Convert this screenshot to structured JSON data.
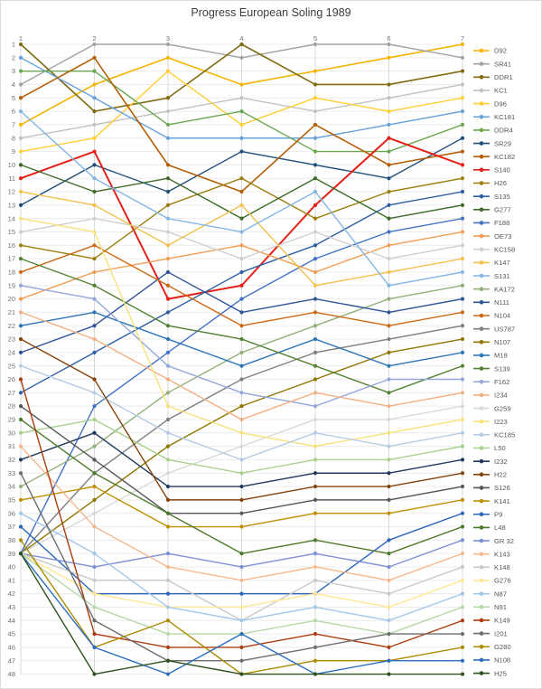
{
  "title": "Progress European Soling 1989",
  "chart_data": {
    "type": "line",
    "subtype": "bump-rank-chart",
    "x": [
      1,
      2,
      3,
      4,
      5,
      6,
      7
    ],
    "x_axis_position": "top",
    "xlabel": "",
    "ylabel": "",
    "y_ticks": [
      1,
      2,
      3,
      4,
      5,
      6,
      7,
      8,
      9,
      10,
      11,
      12,
      13,
      14,
      15,
      16,
      17,
      18,
      19,
      20,
      21,
      22,
      23,
      24,
      25,
      26,
      27,
      28,
      29,
      30,
      31,
      32,
      33,
      34,
      35,
      36,
      37,
      38,
      39,
      40,
      41,
      42,
      43,
      44,
      45,
      46,
      47,
      48
    ],
    "ylim": [
      1,
      48
    ],
    "y_inverted": true,
    "grid": true,
    "legend_position": "right",
    "note": "values are regatta placings per round; round-1 has a tie group at rank 39; legend order equals final round-7 standing",
    "series": [
      {
        "name": "D92",
        "color": "#F4B400",
        "width": 1.6,
        "values": [
          7,
          4,
          2,
          4,
          3,
          2,
          1
        ]
      },
      {
        "name": "SR41",
        "color": "#A3A3A3",
        "width": 1.4,
        "values": [
          4,
          1,
          1,
          2,
          1,
          1,
          2
        ]
      },
      {
        "name": "DDR1",
        "color": "#7F6B11",
        "width": 1.6,
        "values": [
          1,
          6,
          5,
          1,
          4,
          4,
          3
        ]
      },
      {
        "name": "KC1",
        "color": "#C2C2C2",
        "width": 1.4,
        "values": [
          8,
          7,
          6,
          5,
          6,
          5,
          4
        ]
      },
      {
        "name": "D96",
        "color": "#FFCE33",
        "width": 1.4,
        "values": [
          9,
          8,
          3,
          7,
          5,
          6,
          5
        ]
      },
      {
        "name": "KC181",
        "color": "#66A1DC",
        "width": 1.4,
        "values": [
          2,
          5,
          8,
          8,
          8,
          7,
          6
        ]
      },
      {
        "name": "DDR4",
        "color": "#69A84F",
        "width": 1.4,
        "values": [
          3,
          3,
          7,
          6,
          9,
          9,
          7
        ]
      },
      {
        "name": "SR29",
        "color": "#1F4E79",
        "width": 1.4,
        "values": [
          13,
          10,
          12,
          9,
          10,
          11,
          8
        ]
      },
      {
        "name": "KC182",
        "color": "#B45F06",
        "width": 1.6,
        "values": [
          5,
          2,
          10,
          12,
          7,
          10,
          9
        ]
      },
      {
        "name": "S140",
        "color": "#E32119",
        "width": 2.0,
        "values": [
          11,
          9,
          20,
          19,
          13,
          8,
          10
        ]
      },
      {
        "name": "H26",
        "color": "#9C7E0C",
        "width": 1.4,
        "values": [
          16,
          17,
          13,
          11,
          14,
          12,
          11
        ]
      },
      {
        "name": "S135",
        "color": "#2E5FA3",
        "width": 1.4,
        "values": [
          27,
          24,
          21,
          18,
          16,
          13,
          12
        ]
      },
      {
        "name": "G277",
        "color": "#3E6B27",
        "width": 1.4,
        "values": [
          10,
          12,
          11,
          14,
          11,
          14,
          13
        ]
      },
      {
        "name": "F188",
        "color": "#4472C4",
        "width": 1.4,
        "values": [
          39,
          28,
          24,
          20,
          17,
          15,
          14
        ]
      },
      {
        "name": "OE73",
        "color": "#F09E54",
        "width": 1.4,
        "values": [
          20,
          18,
          17,
          16,
          18,
          16,
          15
        ]
      },
      {
        "name": "KC158",
        "color": "#CFCFCF",
        "width": 1.4,
        "values": [
          15,
          14,
          15,
          17,
          15,
          17,
          16
        ]
      },
      {
        "name": "K147",
        "color": "#F2C14E",
        "width": 1.4,
        "values": [
          12,
          13,
          16,
          13,
          19,
          18,
          17
        ]
      },
      {
        "name": "S131",
        "color": "#85B7E6",
        "width": 1.4,
        "values": [
          6,
          11,
          14,
          15,
          12,
          19,
          18
        ]
      },
      {
        "name": "KA172",
        "color": "#93B07A",
        "width": 1.4,
        "values": [
          34,
          31,
          27,
          24,
          22,
          20,
          19
        ]
      },
      {
        "name": "N111",
        "color": "#2F5597",
        "width": 1.4,
        "values": [
          24,
          22,
          18,
          21,
          20,
          21,
          20
        ]
      },
      {
        "name": "N104",
        "color": "#CB6A15",
        "width": 1.4,
        "values": [
          18,
          16,
          19,
          22,
          21,
          22,
          21
        ]
      },
      {
        "name": "US787",
        "color": "#7F7F7F",
        "width": 1.4,
        "values": [
          39,
          33,
          29,
          26,
          24,
          23,
          22
        ]
      },
      {
        "name": "N107",
        "color": "#8E7600",
        "width": 1.4,
        "values": [
          39,
          35,
          31,
          28,
          26,
          24,
          23
        ]
      },
      {
        "name": "M18",
        "color": "#2E75B6",
        "width": 1.4,
        "values": [
          22,
          21,
          23,
          25,
          23,
          25,
          24
        ]
      },
      {
        "name": "S139",
        "color": "#548235",
        "width": 1.4,
        "values": [
          17,
          19,
          22,
          23,
          25,
          27,
          25
        ]
      },
      {
        "name": "F162",
        "color": "#94A7DB",
        "width": 1.4,
        "values": [
          19,
          20,
          25,
          27,
          28,
          26,
          26
        ]
      },
      {
        "name": "I234",
        "color": "#F3B183",
        "width": 1.4,
        "values": [
          21,
          23,
          26,
          29,
          27,
          28,
          27
        ]
      },
      {
        "name": "G259",
        "color": "#D9D9D9",
        "width": 1.4,
        "values": [
          39,
          36,
          33,
          31,
          29,
          29,
          28
        ]
      },
      {
        "name": "I223",
        "color": "#F7E27C",
        "width": 1.4,
        "values": [
          14,
          15,
          28,
          30,
          31,
          30,
          29
        ]
      },
      {
        "name": "KC185",
        "color": "#B6CBE4",
        "width": 1.4,
        "values": [
          25,
          27,
          30,
          32,
          30,
          31,
          30
        ]
      },
      {
        "name": "L50",
        "color": "#A9D18E",
        "width": 1.4,
        "values": [
          30,
          29,
          32,
          33,
          32,
          32,
          31
        ]
      },
      {
        "name": "I232",
        "color": "#20395E",
        "width": 1.4,
        "values": [
          32,
          30,
          34,
          34,
          33,
          33,
          32
        ]
      },
      {
        "name": "H22",
        "color": "#84420C",
        "width": 1.4,
        "values": [
          23,
          26,
          35,
          35,
          34,
          34,
          33
        ]
      },
      {
        "name": "S126",
        "color": "#575757",
        "width": 1.4,
        "values": [
          28,
          32,
          36,
          36,
          35,
          35,
          34
        ]
      },
      {
        "name": "K141",
        "color": "#BF8F00",
        "width": 1.4,
        "values": [
          35,
          34,
          37,
          37,
          36,
          36,
          35
        ]
      },
      {
        "name": "P9",
        "color": "#2B66B8",
        "width": 1.4,
        "values": [
          37,
          42,
          42,
          42,
          42,
          38,
          36
        ]
      },
      {
        "name": "L48",
        "color": "#4E7A2B",
        "width": 1.4,
        "values": [
          29,
          33,
          36,
          39,
          38,
          39,
          37
        ]
      },
      {
        "name": "GR 32",
        "color": "#7C90D6",
        "width": 1.4,
        "values": [
          39,
          40,
          39,
          40,
          39,
          40,
          38
        ]
      },
      {
        "name": "K143",
        "color": "#F6B98E",
        "width": 1.4,
        "values": [
          31,
          37,
          40,
          41,
          40,
          41,
          39
        ]
      },
      {
        "name": "K148",
        "color": "#C9C9C9",
        "width": 1.4,
        "values": [
          39,
          41,
          41,
          44,
          41,
          42,
          40
        ]
      },
      {
        "name": "G276",
        "color": "#FFE794",
        "width": 1.4,
        "values": [
          39,
          42,
          43,
          43,
          42,
          43,
          41
        ]
      },
      {
        "name": "N87",
        "color": "#A3C7E8",
        "width": 1.4,
        "values": [
          36,
          39,
          43,
          44,
          43,
          44,
          42
        ]
      },
      {
        "name": "N91",
        "color": "#B7D8A8",
        "width": 1.4,
        "values": [
          39,
          43,
          45,
          45,
          44,
          45,
          43
        ]
      },
      {
        "name": "K149",
        "color": "#AD3E10",
        "width": 1.4,
        "values": [
          26,
          45,
          46,
          46,
          45,
          46,
          44
        ]
      },
      {
        "name": "I201",
        "color": "#6D6D6D",
        "width": 1.4,
        "values": [
          33,
          44,
          47,
          47,
          46,
          45,
          45
        ]
      },
      {
        "name": "G280",
        "color": "#AB8B00",
        "width": 1.4,
        "values": [
          38,
          46,
          44,
          48,
          47,
          47,
          46
        ]
      },
      {
        "name": "N108",
        "color": "#2C6FBF",
        "width": 1.4,
        "values": [
          39,
          46,
          48,
          45,
          48,
          47,
          47
        ]
      },
      {
        "name": "H25",
        "color": "#2F521F",
        "width": 1.4,
        "values": [
          39,
          48,
          47,
          48,
          48,
          48,
          48
        ]
      }
    ]
  },
  "style": {
    "background": "#ffffff",
    "frame_border": "#dcdcdc",
    "grid_vertical": "#d8d8d8",
    "grid_horizontal": "#ececec",
    "axis_text": "#6e6e6e",
    "legend_text": "#555555",
    "title_text": "#3c3c3c"
  }
}
